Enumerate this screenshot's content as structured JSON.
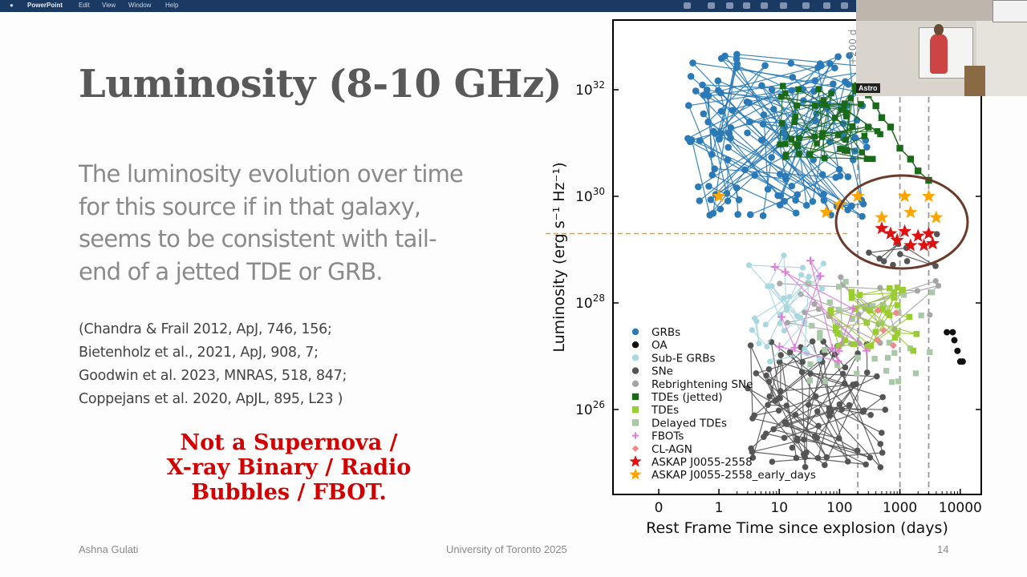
{
  "menubar": {
    "app": "PowerPoint",
    "items": [
      "Edit",
      "View",
      "Window",
      "Help"
    ]
  },
  "slide": {
    "title": "Luminosity (8-10 GHz)",
    "body_lines": [
      "The luminosity evolution over time",
      "for this source if in that galaxy,",
      "seems to be consistent with tail-",
      "end of a jetted TDE or GRB."
    ],
    "references": [
      "(Chandra & Frail 2012, ApJ, 746, 156;",
      " Bietenholz et al., 2021, ApJ, 908, 7;",
      "Goodwin et al. 2023, MNRAS, 518, 847;",
      "Coppejans et al. 2020, ApJL, 895, L23 )"
    ],
    "callout_lines": [
      "Not a Supernova /",
      "X-ray Binary / Radio",
      "Bubbles / FBOT."
    ],
    "footer": {
      "author": "Ashna Gulati",
      "center": "University of Toronto 2025",
      "page": "14"
    }
  },
  "video": {
    "label": "Astro"
  },
  "chart_data": {
    "type": "scatter",
    "xlabel": "Rest Frame Time since explosion (days)",
    "ylabel": "Luminosity (erg s⁻¹ Hz⁻¹)",
    "x_scale": "symlog",
    "y_scale": "log",
    "xticks": [
      "0",
      "1",
      "10",
      "100",
      "1000",
      "10000"
    ],
    "yticks": [
      "10^26",
      "10^28",
      "10^30",
      "10^32"
    ],
    "ylim": [
      1e+25,
      1e+33
    ],
    "annotation": "+200 d",
    "reference_lines": {
      "vertical_days": [
        200,
        1000,
        3000
      ],
      "horizontal_luminosity": 2e+29
    },
    "legend": {
      "placement": "lower-left",
      "entries": [
        {
          "label": "GRBs",
          "color": "#2a7ab8",
          "marker": "circle"
        },
        {
          "label": "OA",
          "color": "#111111",
          "marker": "circle"
        },
        {
          "label": "Sub-E GRBs",
          "color": "#a8d8e0",
          "marker": "circle"
        },
        {
          "label": "SNe",
          "color": "#555555",
          "marker": "circle"
        },
        {
          "label": "Rebrightening SNe",
          "color": "#a6a6a6",
          "marker": "circle"
        },
        {
          "label": "TDEs (jetted)",
          "color": "#1a6a1a",
          "marker": "square"
        },
        {
          "label": "TDEs",
          "color": "#9acd32",
          "marker": "square"
        },
        {
          "label": "Delayed TDEs",
          "color": "#a8c8a8",
          "marker": "square"
        },
        {
          "label": "FBOTs",
          "color": "#e07ad8",
          "marker": "plus"
        },
        {
          "label": "CL-AGN",
          "color": "#f08a8a",
          "marker": "diamond"
        },
        {
          "label": "ASKAP J0055-2558",
          "color": "#e01010",
          "marker": "star"
        },
        {
          "label": "ASKAP J0055-2558_early_days",
          "color": "#ffa500",
          "marker": "star"
        }
      ]
    },
    "series": [
      {
        "name": "ASKAP J0055-2558",
        "x": [
          500,
          700,
          900,
          1200,
          1500,
          2000,
          2500,
          3000,
          3500
        ],
        "y": [
          2.5e+29,
          2e+29,
          1.5e+29,
          2.2e+29,
          1.2e+29,
          1.8e+29,
          1.2e+29,
          2e+29,
          1.3e+29
        ]
      },
      {
        "name": "ASKAP J0055-2558_early_days",
        "x": [
          1,
          60,
          100,
          200,
          500,
          1200,
          1500,
          3000,
          4000
        ],
        "y": [
          1e+30,
          5e+29,
          7e+29,
          1e+30,
          4e+29,
          1e+30,
          5e+29,
          1e+30,
          4e+29
        ]
      },
      {
        "name": "TDEs (jetted)",
        "x": [
          200,
          300,
          400,
          500,
          700,
          1000,
          1500,
          2000,
          3000
        ],
        "y": [
          1.2e+32,
          8e+31,
          5e+31,
          3e+31,
          2e+31,
          8e+30,
          5e+30,
          3e+30,
          2e+30
        ]
      }
    ]
  }
}
